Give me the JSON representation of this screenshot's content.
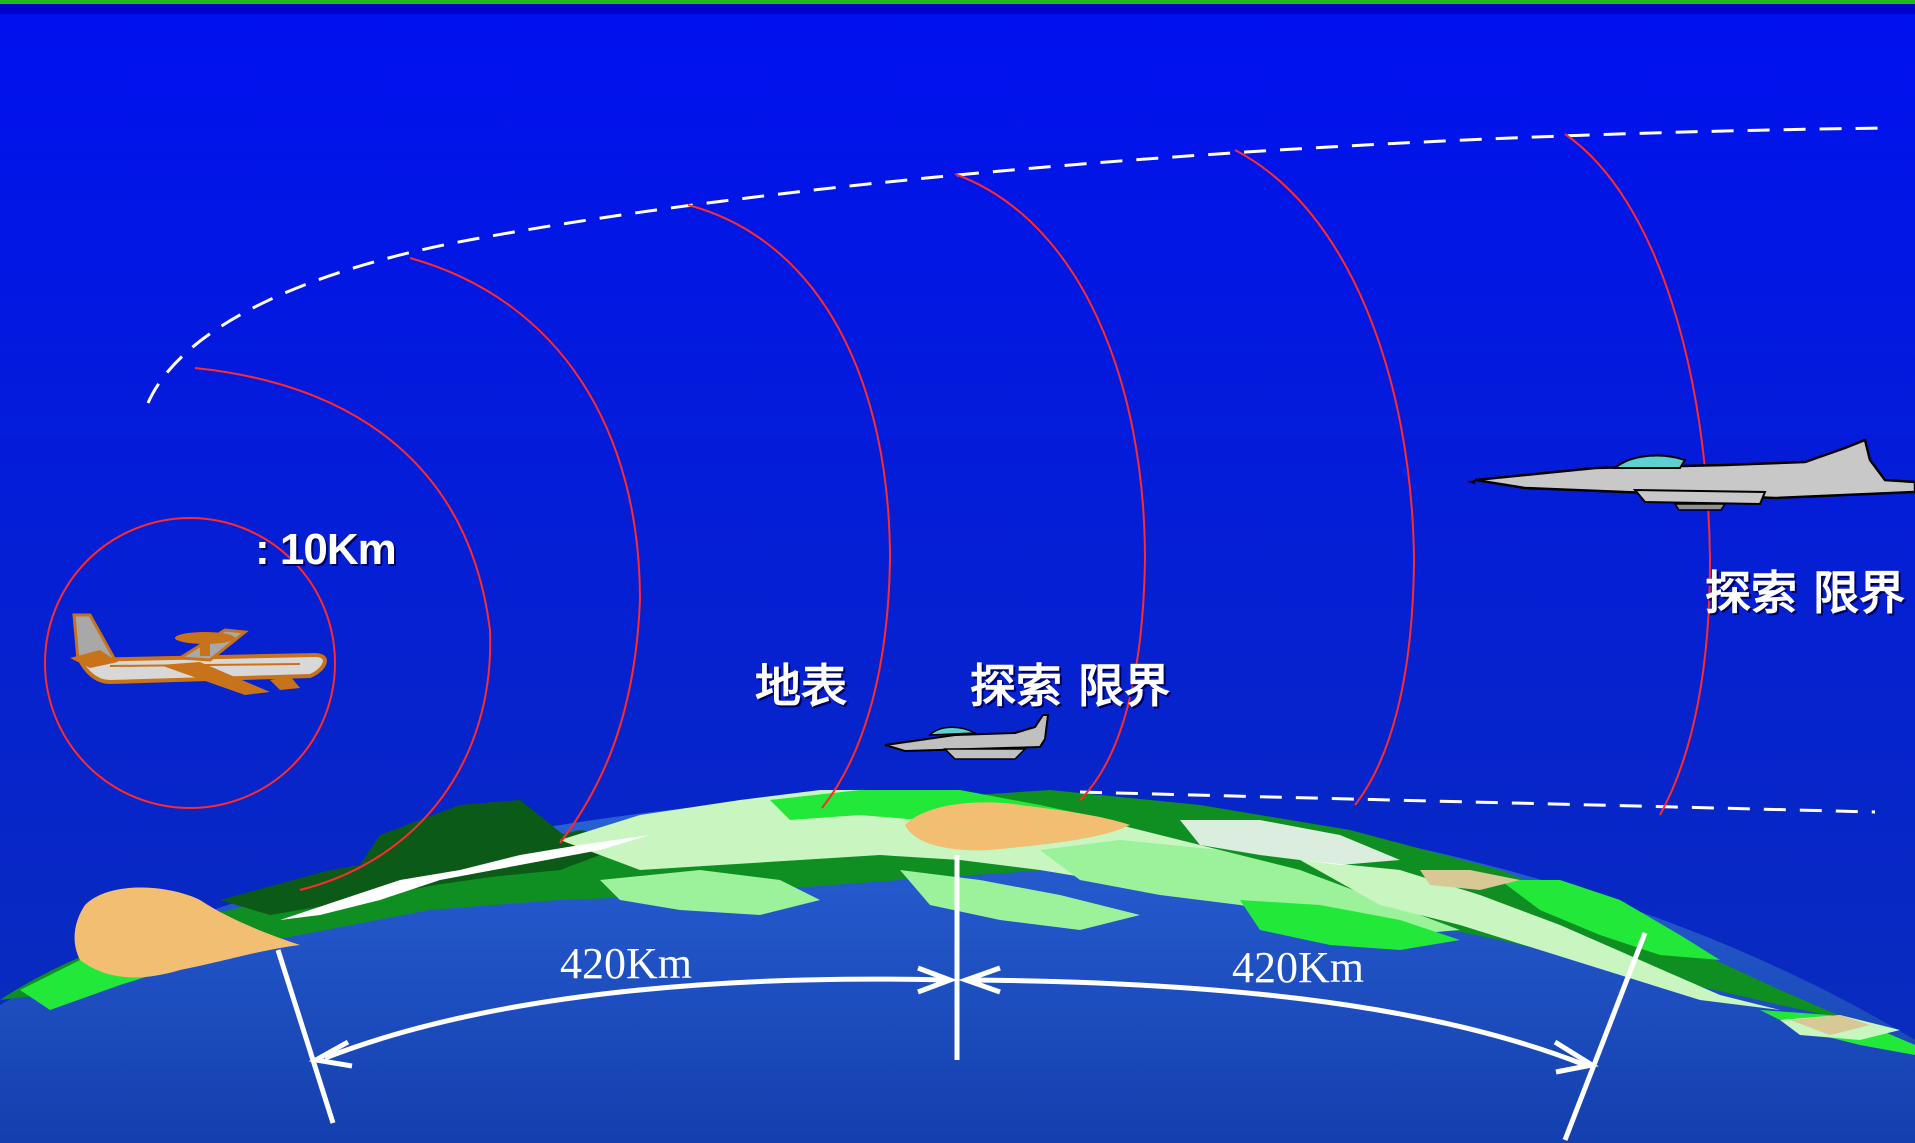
{
  "labels": {
    "altitude": ": 10Km",
    "surface": "地表",
    "search_limit_low": "探索 限界",
    "search_limit_high": "探索 限界"
  },
  "distances": {
    "left": "420Km",
    "right": "420Km"
  },
  "colors": {
    "sky_top": "#0010f0",
    "sky_bottom": "#0a2fb8",
    "earth": "#1f55c8",
    "wave": "#ff2a2a",
    "boundary": "#ffffff",
    "land_light": "#c8f5c0",
    "land_green": "#22e83a",
    "land_dark": "#0c5a18",
    "land_tan": "#f2bf72"
  },
  "icons": {
    "awacs": "awacs-aircraft-icon",
    "low_fighter": "fighter-jet-icon",
    "high_fighter": "fighter-jet-icon"
  }
}
